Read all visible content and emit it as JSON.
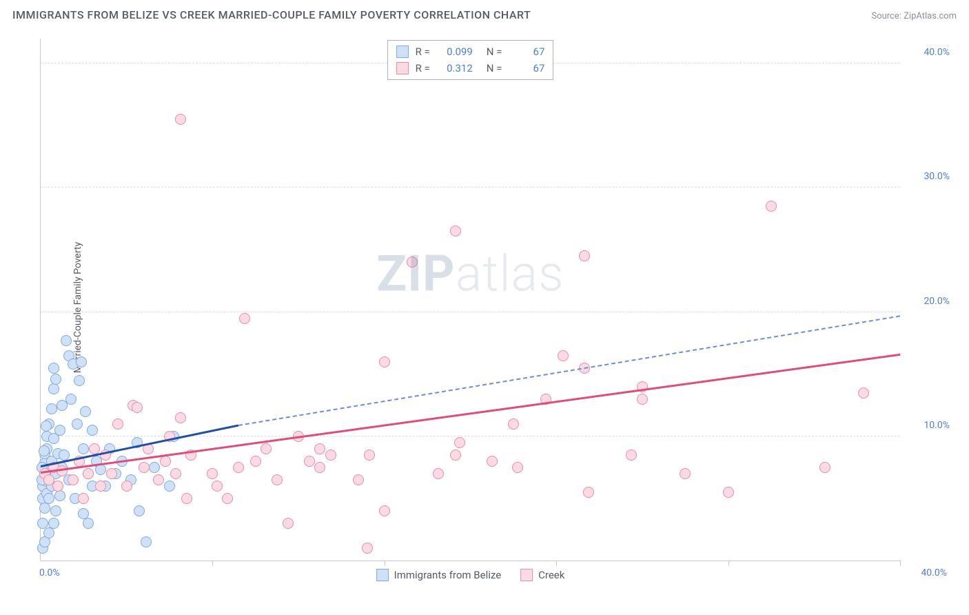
{
  "header": {
    "title": "IMMIGRANTS FROM BELIZE VS CREEK MARRIED-COUPLE FAMILY POVERTY CORRELATION CHART",
    "source_prefix": "Source: ",
    "source_name": "ZipAtlas.com"
  },
  "chart": {
    "type": "scatter",
    "ylabel": "Married-Couple Family Poverty",
    "xlim": [
      0,
      40
    ],
    "ylim": [
      0,
      42
    ],
    "ytick_values": [
      10,
      20,
      30,
      40
    ],
    "ytick_labels": [
      "10.0%",
      "20.0%",
      "30.0%",
      "40.0%"
    ],
    "xtick_values": [
      0,
      8,
      16,
      24,
      32,
      40
    ],
    "origin_label": "0.0%",
    "xmax_label": "40.0%",
    "grid_color": "#d9dde2",
    "axis_color": "#c7cbd1",
    "background_color": "#ffffff",
    "watermark_zip": "ZIP",
    "watermark_atlas": "atlas",
    "series": [
      {
        "key": "belize",
        "label": "Immigrants from Belize",
        "marker_fill": "#cfe1f7",
        "marker_stroke": "#7ea9e0",
        "trend_color": "#1f4fa8",
        "trend_dash_color": "#6b8fd6",
        "R": "0.099",
        "N": "67",
        "trend_solid": {
          "x1": 0,
          "y1": 7.5,
          "x2": 9.2,
          "y2": 10.8
        },
        "trend_dash": {
          "x1": 9.2,
          "y1": 10.8,
          "x2": 40,
          "y2": 19.6
        },
        "points": [
          [
            0.1,
            5.0
          ],
          [
            0.1,
            6.0
          ],
          [
            0.2,
            7.0
          ],
          [
            0.2,
            7.8
          ],
          [
            0.2,
            4.2
          ],
          [
            0.2,
            8.6
          ],
          [
            0.3,
            5.4
          ],
          [
            0.3,
            9.0
          ],
          [
            0.3,
            6.4
          ],
          [
            0.3,
            10.0
          ],
          [
            0.4,
            7.2
          ],
          [
            0.4,
            11.0
          ],
          [
            0.4,
            5.0
          ],
          [
            0.5,
            8.0
          ],
          [
            0.5,
            12.2
          ],
          [
            0.5,
            6.0
          ],
          [
            0.6,
            9.8
          ],
          [
            0.6,
            13.8
          ],
          [
            0.6,
            15.5
          ],
          [
            0.7,
            14.6
          ],
          [
            0.7,
            7.0
          ],
          [
            0.7,
            4.0
          ],
          [
            0.8,
            8.6
          ],
          [
            0.8,
            6.0
          ],
          [
            0.9,
            10.5
          ],
          [
            0.9,
            5.2
          ],
          [
            1.0,
            12.5
          ],
          [
            1.0,
            7.5
          ],
          [
            1.1,
            8.5
          ],
          [
            1.2,
            17.7
          ],
          [
            1.3,
            16.5
          ],
          [
            1.3,
            6.5
          ],
          [
            1.5,
            15.8
          ],
          [
            1.6,
            5.0
          ],
          [
            1.8,
            14.5
          ],
          [
            1.9,
            16.0
          ],
          [
            2.0,
            9.0
          ],
          [
            2.0,
            3.8
          ],
          [
            2.2,
            3.0
          ],
          [
            2.2,
            7.0
          ],
          [
            2.4,
            10.5
          ],
          [
            2.4,
            6.0
          ],
          [
            2.6,
            8.0
          ],
          [
            2.8,
            7.3
          ],
          [
            3.0,
            6.0
          ],
          [
            3.2,
            9.0
          ],
          [
            3.5,
            7.0
          ],
          [
            3.8,
            8.0
          ],
          [
            4.2,
            6.5
          ],
          [
            4.5,
            9.5
          ],
          [
            4.6,
            4.0
          ],
          [
            4.9,
            1.5
          ],
          [
            5.3,
            7.5
          ],
          [
            6.0,
            6.0
          ],
          [
            6.2,
            10.0
          ],
          [
            1.4,
            13.0
          ],
          [
            0.1,
            1.0
          ],
          [
            0.2,
            1.5
          ],
          [
            0.4,
            2.2
          ],
          [
            0.6,
            3.0
          ],
          [
            1.7,
            11.0
          ],
          [
            2.1,
            12.0
          ],
          [
            0.05,
            7.5
          ],
          [
            0.05,
            6.5
          ],
          [
            0.15,
            8.8
          ],
          [
            0.25,
            10.8
          ],
          [
            0.1,
            3.0
          ]
        ]
      },
      {
        "key": "creek",
        "label": "Creek",
        "marker_fill": "#fadbe4",
        "marker_stroke": "#e98ba8",
        "trend_color": "#e44a78",
        "R": "0.312",
        "N": "67",
        "trend_solid": {
          "x1": 0,
          "y1": 7.0,
          "x2": 40,
          "y2": 16.5
        },
        "points": [
          [
            0.2,
            7.0
          ],
          [
            0.4,
            6.5
          ],
          [
            0.6,
            7.5
          ],
          [
            0.8,
            6.0
          ],
          [
            1.0,
            7.2
          ],
          [
            1.5,
            6.5
          ],
          [
            1.8,
            8.0
          ],
          [
            2.0,
            5.0
          ],
          [
            2.2,
            7.0
          ],
          [
            2.5,
            9.0
          ],
          [
            2.8,
            6.0
          ],
          [
            3.0,
            8.5
          ],
          [
            3.3,
            7.0
          ],
          [
            3.6,
            11.0
          ],
          [
            4.0,
            6.0
          ],
          [
            4.3,
            12.5
          ],
          [
            4.5,
            12.3
          ],
          [
            4.8,
            7.5
          ],
          [
            5.0,
            9.0
          ],
          [
            5.5,
            6.5
          ],
          [
            5.8,
            8.0
          ],
          [
            6.0,
            10.0
          ],
          [
            6.3,
            7.0
          ],
          [
            6.5,
            11.5
          ],
          [
            6.5,
            35.5
          ],
          [
            6.8,
            5.0
          ],
          [
            7.0,
            8.5
          ],
          [
            8.0,
            7.0
          ],
          [
            8.2,
            6.0
          ],
          [
            8.7,
            5.0
          ],
          [
            9.2,
            7.5
          ],
          [
            9.5,
            19.5
          ],
          [
            10.0,
            8.0
          ],
          [
            10.5,
            9.0
          ],
          [
            11.0,
            6.5
          ],
          [
            11.5,
            3.0
          ],
          [
            12.0,
            10.0
          ],
          [
            12.5,
            8.0
          ],
          [
            13.0,
            7.5
          ],
          [
            13.5,
            8.5
          ],
          [
            14.8,
            6.5
          ],
          [
            15.2,
            1.0
          ],
          [
            15.3,
            8.5
          ],
          [
            16.0,
            16.0
          ],
          [
            16.0,
            4.0
          ],
          [
            17.3,
            24.0
          ],
          [
            18.5,
            7.0
          ],
          [
            19.3,
            8.5
          ],
          [
            19.3,
            26.5
          ],
          [
            19.5,
            9.5
          ],
          [
            21.0,
            8.0
          ],
          [
            22.0,
            11.0
          ],
          [
            22.2,
            7.5
          ],
          [
            23.5,
            13.0
          ],
          [
            24.3,
            16.5
          ],
          [
            25.3,
            15.5
          ],
          [
            25.3,
            24.5
          ],
          [
            25.5,
            5.5
          ],
          [
            27.5,
            8.5
          ],
          [
            28.0,
            14.0
          ],
          [
            28.0,
            13.0
          ],
          [
            30.0,
            7.0
          ],
          [
            32.0,
            5.5
          ],
          [
            34.0,
            28.5
          ],
          [
            36.5,
            7.5
          ],
          [
            38.3,
            13.5
          ],
          [
            13.0,
            9.0
          ]
        ]
      }
    ],
    "stats_legend": {
      "r_label": "R =",
      "n_label": "N ="
    }
  }
}
